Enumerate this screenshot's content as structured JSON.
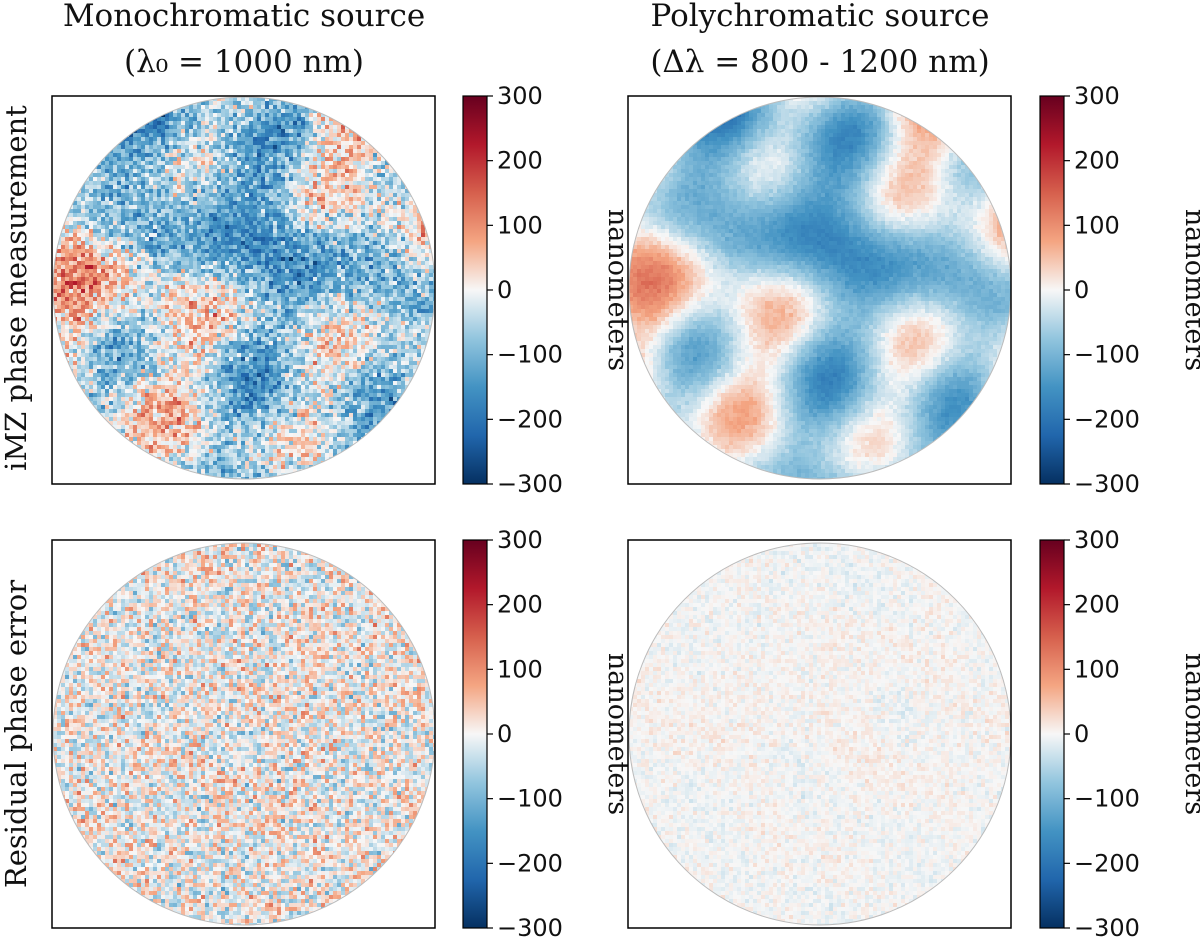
{
  "chart_data": [
    {
      "type": "heatmap",
      "column_title": [
        "Monochromatic source",
        "(λ₀ = 1000 nm)"
      ],
      "row_label": "iMZ phase measurement",
      "colorbar_label": "nanometers",
      "colorbar_ticks": [
        "300",
        "200",
        "100",
        "0",
        "−100",
        "−200",
        "−300"
      ],
      "colorbar_range": [
        -300,
        300
      ],
      "colormap": "RdBu_r",
      "grid": false,
      "pattern": {
        "seed": 11,
        "smooth_amp": 120,
        "noise_amp": 150,
        "pixel": 4
      }
    },
    {
      "type": "heatmap",
      "column_title": [
        "Polychromatic source",
        "(Δλ = 800 - 1200 nm)"
      ],
      "row_label": "iMZ phase measurement",
      "colorbar_label": "nanometers",
      "colorbar_ticks": [
        "300",
        "200",
        "100",
        "0",
        "−100",
        "−200",
        "−300"
      ],
      "colorbar_range": [
        -300,
        300
      ],
      "colormap": "RdBu_r",
      "grid": false,
      "pattern": {
        "seed": 11,
        "smooth_amp": 125,
        "noise_amp": 22,
        "pixel": 4
      }
    },
    {
      "type": "heatmap",
      "column_title": [
        "Monochromatic source",
        "(λ₀ = 1000 nm)"
      ],
      "row_label": "Residual phase error",
      "colorbar_label": "nanometers",
      "colorbar_ticks": [
        "300",
        "200",
        "100",
        "0",
        "−100",
        "−200",
        "−300"
      ],
      "colorbar_range": [
        -300,
        300
      ],
      "colormap": "RdBu_r",
      "grid": false,
      "pattern": {
        "seed": 29,
        "smooth_amp": 8,
        "noise_amp": 150,
        "pixel": 4
      }
    },
    {
      "type": "heatmap",
      "column_title": [
        "Polychromatic source",
        "(Δλ = 800 - 1200 nm)"
      ],
      "row_label": "Residual phase error",
      "colorbar_label": "nanometers",
      "colorbar_ticks": [
        "300",
        "200",
        "100",
        "0",
        "−100",
        "−200",
        "−300"
      ],
      "colorbar_range": [
        -300,
        300
      ],
      "colormap": "RdBu_r",
      "grid": false,
      "pattern": {
        "seed": 47,
        "smooth_amp": 5,
        "noise_amp": 32,
        "pixel": 4
      }
    }
  ]
}
